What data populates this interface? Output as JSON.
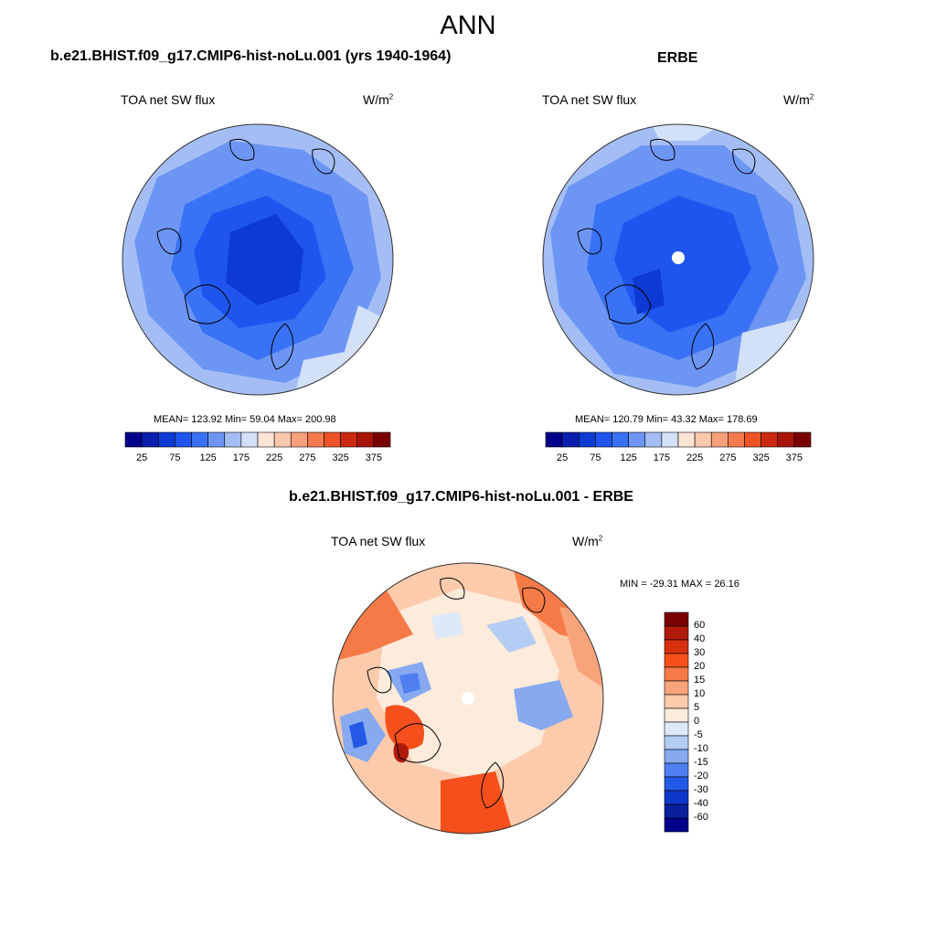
{
  "title": "ANN",
  "panels": [
    {
      "title": "b.e21.BHIST.f09_g17.CMIP6-hist-noLu.001 (yrs 1940-1964)",
      "left_label": "TOA net SW flux",
      "units_base": "W/m",
      "units_sup": "2",
      "stats": "MEAN= 123.92  Min=  59.04  Max= 200.98"
    },
    {
      "title": "ERBE",
      "left_label": "TOA net SW flux",
      "units_base": "W/m",
      "units_sup": "2",
      "stats": "MEAN= 120.79  Min=  43.32  Max= 178.69"
    },
    {
      "title": "b.e21.BHIST.f09_g17.CMIP6-hist-noLu.001 - ERBE",
      "left_label": "TOA net SW flux",
      "units_base": "W/m",
      "units_sup": "2",
      "stats": "MIN = -29.31 MAX =  26.16"
    }
  ],
  "colorbar_abs": {
    "labels": [
      "25",
      "75",
      "125",
      "175",
      "225",
      "275",
      "325",
      "375"
    ],
    "colors": [
      "#00008b",
      "#0a1fb0",
      "#0d3ad2",
      "#1f55ee",
      "#3a72f5",
      "#6d96f4",
      "#a4bef5",
      "#d2e1f8",
      "#fde5d6",
      "#fbc8ad",
      "#f7a07a",
      "#f47a4e",
      "#ee5326",
      "#cc2a10",
      "#a81408",
      "#7b0000"
    ]
  },
  "colorbar_diff": {
    "labels": [
      "60",
      "40",
      "30",
      "20",
      "15",
      "10",
      "5",
      "0",
      "-5",
      "-10",
      "-15",
      "-20",
      "-30",
      "-40",
      "-60"
    ],
    "colors": [
      "#7b0000",
      "#b01a0a",
      "#d8300f",
      "#f5501c",
      "#f67a48",
      "#f8a37a",
      "#fbcbac",
      "#fdebdc",
      "#dde9f8",
      "#b4cdf4",
      "#86a9f0",
      "#4f7ef0",
      "#2459e6",
      "#0f37c9",
      "#0a1f9c",
      "#00008b"
    ]
  }
}
